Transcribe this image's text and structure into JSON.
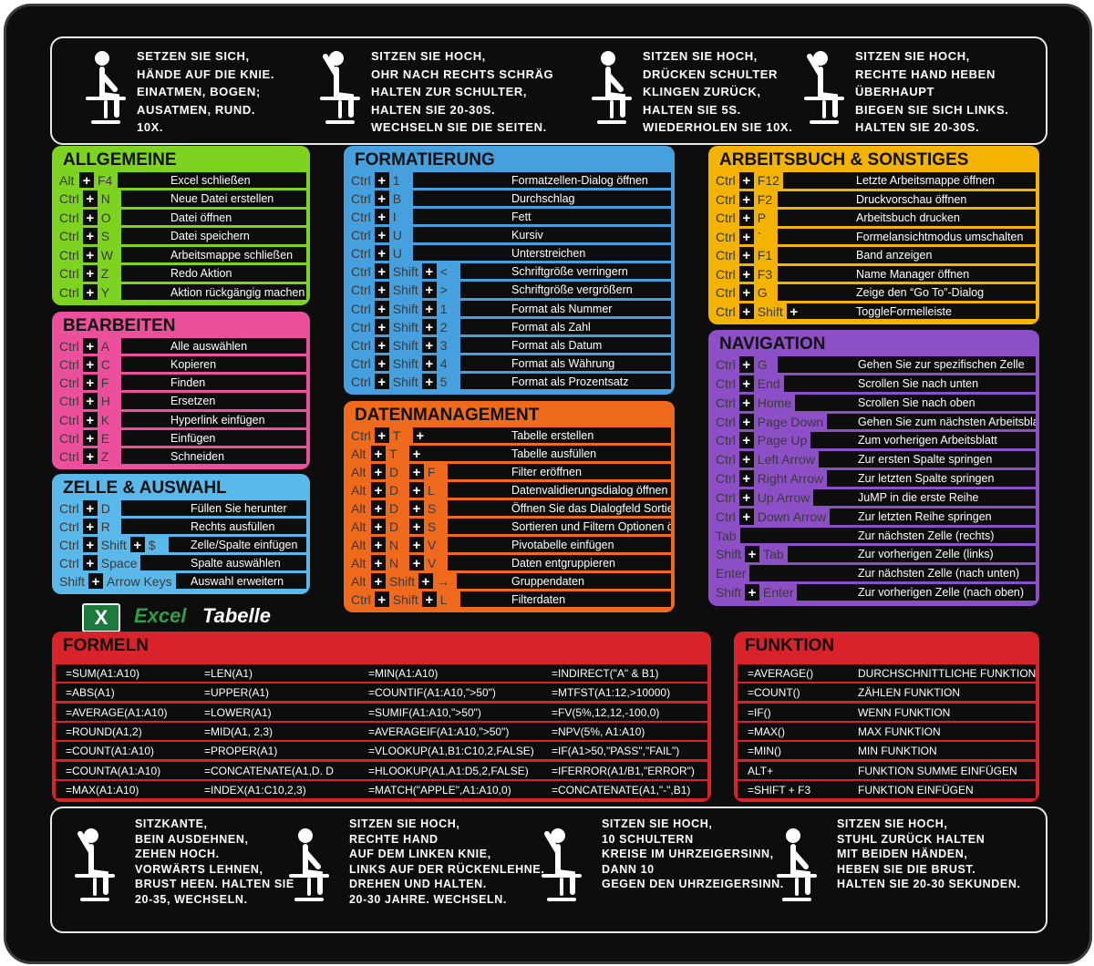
{
  "exercises_top": [
    [
      "SETZEN SIE SICH,",
      "HÄNDE AUF DIE KNIE.",
      "EINATMEN, BOGEN;",
      "AUSATMEN, RUND.",
      "10X."
    ],
    [
      "SITZEN SIE HOCH,",
      "OHR NACH RECHTS SCHRÄG",
      "HALTEN ZUR SCHULTER,",
      "HALTEN SIE 20-30S.",
      "WECHSELN SIE DIE SEITEN."
    ],
    [
      "SITZEN SIE HOCH,",
      "DRÜCKEN SCHULTER",
      "KLINGEN ZURÜCK,",
      "HALTEN SIE 5S.",
      "WIEDERHOLEN SIE 10X."
    ],
    [
      "SITZEN SIE HOCH,",
      "RECHTE HAND HEBEN",
      "ÜBERHAUPT",
      "BIEGEN SIE SICH LINKS.",
      "HALTEN SIE 20-30S."
    ]
  ],
  "sections": [
    {
      "title": "ALLGEMEINE",
      "rows": [
        {
          "keys": [
            "Alt",
            "+",
            "F4"
          ],
          "description": "Excel schließen"
        },
        {
          "keys": [
            "Ctrl",
            "+",
            "N"
          ],
          "description": "Neue Datei erstellen"
        },
        {
          "keys": [
            "Ctrl",
            "+",
            "O"
          ],
          "description": "Datei öffnen"
        },
        {
          "keys": [
            "Ctrl",
            "+",
            "S"
          ],
          "description": "Datei speichern"
        },
        {
          "keys": [
            "Ctrl",
            "+",
            "W"
          ],
          "description": "Arbeitsmappe schließen"
        },
        {
          "keys": [
            "Ctrl",
            "+",
            "Z"
          ],
          "description": "Redo Aktion"
        },
        {
          "keys": [
            "Ctrl",
            "+",
            "Y"
          ],
          "description": "Aktion rückgängig machen"
        }
      ]
    },
    {
      "title": "BEARBEITEN",
      "rows": [
        {
          "keys": [
            "Ctrl",
            "+",
            "A"
          ],
          "description": "Alle auswählen"
        },
        {
          "keys": [
            "Ctrl",
            "+",
            "C"
          ],
          "description": "Kopieren"
        },
        {
          "keys": [
            "Ctrl",
            "+",
            "F"
          ],
          "description": "Finden"
        },
        {
          "keys": [
            "Ctrl",
            "+",
            "H"
          ],
          "description": "Ersetzen"
        },
        {
          "keys": [
            "Ctrl",
            "+",
            "K"
          ],
          "description": "Hyperlink einfügen"
        },
        {
          "keys": [
            "Ctrl",
            "+",
            "E"
          ],
          "description": "Einfügen"
        },
        {
          "keys": [
            "Ctrl",
            "+",
            "Z"
          ],
          "description": "Schneiden"
        }
      ]
    },
    {
      "title": "ZELLE & AUSWAHL",
      "rows": [
        {
          "keys": [
            "Ctrl",
            "+",
            "D"
          ],
          "description": "Füllen Sie herunter"
        },
        {
          "keys": [
            "Ctrl",
            "+",
            "R"
          ],
          "description": "Rechts ausfüllen"
        },
        {
          "keys": [
            "Ctrl",
            "+",
            "Shift",
            "+",
            "$"
          ],
          "description": "Zelle/Spalte einfügen"
        },
        {
          "keys": [
            "Ctrl",
            "+",
            "Space"
          ],
          "description": "Spalte auswählen"
        },
        {
          "keys": [
            "Shift",
            "+",
            "Arrow Keys"
          ],
          "description": "Auswahl erweitern"
        }
      ]
    },
    {
      "title": "FORMATIERUNG",
      "rows": [
        {
          "keys": [
            "Ctrl",
            "+",
            "1"
          ],
          "description": "Formatzellen-Dialog öffnen"
        },
        {
          "keys": [
            "Ctrl",
            "+",
            "B"
          ],
          "description": "Durchschlag"
        },
        {
          "keys": [
            "Ctrl",
            "+",
            "I"
          ],
          "description": "Fett"
        },
        {
          "keys": [
            "Ctrl",
            "+",
            "U"
          ],
          "description": "Kursiv"
        },
        {
          "keys": [
            "Ctrl",
            "+",
            "U"
          ],
          "description": "Unterstreichen"
        },
        {
          "keys": [
            "Ctrl",
            "+",
            "Shift",
            "+",
            "<"
          ],
          "description": "Schriftgröße verringern"
        },
        {
          "keys": [
            "Ctrl",
            "+",
            "Shift",
            "+",
            ">"
          ],
          "description": "Schriftgröße vergrößern"
        },
        {
          "keys": [
            "Ctrl",
            "+",
            "Shift",
            "+",
            "1"
          ],
          "description": "Format als Nummer"
        },
        {
          "keys": [
            "Ctrl",
            "+",
            "Shift",
            "+",
            "2"
          ],
          "description": "Format als Zahl"
        },
        {
          "keys": [
            "Ctrl",
            "+",
            "Shift",
            "+",
            "3"
          ],
          "description": "Format als Datum"
        },
        {
          "keys": [
            "Ctrl",
            "+",
            "Shift",
            "+",
            "4"
          ],
          "description": "Format als Währung"
        },
        {
          "keys": [
            "Ctrl",
            "+",
            "Shift",
            "+",
            "5"
          ],
          "description": "Format als Prozentsatz"
        }
      ]
    },
    {
      "title": "DATENMANAGEMENT",
      "rows": [
        {
          "keys": [
            "Ctrl",
            "+",
            "T",
            "+"
          ],
          "description": "Tabelle erstellen"
        },
        {
          "keys": [
            "Alt",
            "+",
            "T",
            "+"
          ],
          "description": "Tabelle ausfüllen"
        },
        {
          "keys": [
            "Alt",
            "+",
            "D",
            "+",
            "F"
          ],
          "description": "Filter eröffnen"
        },
        {
          "keys": [
            "Alt",
            "+",
            "D",
            "+",
            "L"
          ],
          "description": "Datenvalidierungsdialog öffnen"
        },
        {
          "keys": [
            "Alt",
            "+",
            "D",
            "+",
            "S"
          ],
          "description": "Öffnen Sie das Dialogfeld Sortieren"
        },
        {
          "keys": [
            "Alt",
            "+",
            "D",
            "+",
            "S"
          ],
          "description": "Sortieren und Filtern Optionen öffnen"
        },
        {
          "keys": [
            "Alt",
            "+",
            "N",
            "+",
            "V"
          ],
          "description": "Pivotabelle einfügen"
        },
        {
          "keys": [
            "Alt",
            "+",
            "N",
            "+",
            "V"
          ],
          "description": "Daten entgruppieren"
        },
        {
          "keys": [
            "Alt",
            "+",
            "Shift",
            "+",
            "→"
          ],
          "description": "Gruppendaten"
        },
        {
          "keys": [
            "Ctrl",
            "+",
            "Shift",
            "+",
            "L"
          ],
          "description": "Filterdaten"
        }
      ]
    },
    {
      "title": "ARBEITSBUCH & SONSTIGES",
      "rows": [
        {
          "keys": [
            "Ctrl",
            "+",
            "F12"
          ],
          "description": "Letzte Arbeitsmappe öffnen"
        },
        {
          "keys": [
            "Ctrl",
            "+",
            "F2"
          ],
          "description": "Druckvorschau öffnen"
        },
        {
          "keys": [
            "Ctrl",
            "+",
            "P"
          ],
          "description": "Arbeitsbuch drucken"
        },
        {
          "keys": [
            "Ctrl",
            "+",
            "`"
          ],
          "description": "Formelansichtmodus umschalten"
        },
        {
          "keys": [
            "Ctrl",
            "+",
            "F1"
          ],
          "description": "Band anzeigen"
        },
        {
          "keys": [
            "Ctrl",
            "+",
            "F3"
          ],
          "description": "Name Manager öffnen"
        },
        {
          "keys": [
            "Ctrl",
            "+",
            "G"
          ],
          "description": "Zeige den “Go To”-Dialog"
        },
        {
          "keys": [
            "Ctrl",
            "+",
            "Shift",
            "+"
          ],
          "description": "ToggleFormelleiste"
        }
      ]
    },
    {
      "title": "NAVIGATION",
      "rows": [
        {
          "keys": [
            "Ctrl",
            "+",
            "G"
          ],
          "description": "Gehen Sie zur spezifischen Zelle"
        },
        {
          "keys": [
            "Ctrl",
            "+",
            "End"
          ],
          "description": "Scrollen Sie nach unten"
        },
        {
          "keys": [
            "Ctrl",
            "+",
            "Home"
          ],
          "description": "Scrollen Sie nach oben"
        },
        {
          "keys": [
            "Ctrl",
            "+",
            "Page Down"
          ],
          "description": "Gehen Sie zum nächsten Arbeitsblatt"
        },
        {
          "keys": [
            "Ctrl",
            "+",
            "Page Up"
          ],
          "description": "Zum vorherigen Arbeitsblatt"
        },
        {
          "keys": [
            "Ctrl",
            "+",
            "Left Arrow"
          ],
          "description": "Zur ersten Spalte springen"
        },
        {
          "keys": [
            "Ctrl",
            "+",
            "Right Arrow"
          ],
          "description": "Zur letzten Spalte springen"
        },
        {
          "keys": [
            "Ctrl",
            "+",
            "Up Arrow"
          ],
          "description": "JuMP in die erste Reihe"
        },
        {
          "keys": [
            "Ctrl",
            "+",
            "Down Arrow"
          ],
          "description": "Zur letzten Reihe springen"
        },
        {
          "keys": [
            "Tab"
          ],
          "description": "Zur nächsten Zelle (rechts)"
        },
        {
          "keys": [
            "Shift",
            "+",
            "Tab"
          ],
          "description": "Zur vorherigen Zelle (links)"
        },
        {
          "keys": [
            "Enter"
          ],
          "description": "Zur nächsten Zelle (nach unten)"
        },
        {
          "keys": [
            "Shift",
            "+",
            "Enter"
          ],
          "description": "Zur vorherigen Zelle (nach oben)"
        }
      ]
    }
  ],
  "logo": {
    "icon": "X",
    "brand": "Excel",
    "product": "Tabelle"
  },
  "formeln": {
    "title": "FORMELN",
    "rows": [
      [
        "=SUM(A1:A10)",
        "=LEN(A1)",
        "=MIN(A1:A10)",
        "=INDIRECT(\"A\" & B1)"
      ],
      [
        "=ABS(A1)",
        "=UPPER(A1)",
        "=COUNTIF(A1:A10,\">50\")",
        "=MTFST(A1:12,>10000)"
      ],
      [
        "=AVERAGE(A1:A10)",
        "=LOWER(A1)",
        "=SUMIF(A1:A10,\">50\")",
        "=FV(5%,12,12,-100,0)"
      ],
      [
        "=ROUND(A1,2)",
        "=MID(A1, 2,3)",
        "=AVERAGEIF(A1:A10,\">50\")",
        "=NPV(5%, A1:A10)"
      ],
      [
        "=COUNT(A1:A10)",
        "=PROPER(A1)",
        "=VLOOKUP(A1,B1:C10,2,FALSE)",
        "=IF(A1>50,\"PASS\",\"FAIL\")"
      ],
      [
        "=COUNTA(A1:A10)",
        "=CONCATENATE(A1,D. D",
        "=HLOOKUP(A1,A1:D5,2,FALSE)",
        "=IFERROR(A1/B1,\"ERROR\")"
      ],
      [
        "=MAX(A1:A10)",
        "=INDEX(A1:C10,2,3)",
        "=MATCH(\"APPLE\",A1:A10,0)",
        "=CONCATENATE(A1,\"-\",B1)"
      ]
    ]
  },
  "funktion": {
    "title": "FUNKTION",
    "rows": [
      [
        "=AVERAGE()",
        "DURCHSCHNITTLICHE FUNKTION"
      ],
      [
        "=COUNT()",
        "ZÄHLEN FUNKTION"
      ],
      [
        "=IF()",
        "WENN FUNKTION"
      ],
      [
        "=MAX()",
        "MAX FUNKTION"
      ],
      [
        "=MIN()",
        "MIN FUNKTION"
      ],
      [
        "ALT+",
        "FUNKTION SUMME EINFÜGEN"
      ],
      [
        "=SHIFT + F3",
        "FUNKTION EINFÜGEN"
      ]
    ]
  },
  "exercises_bottom": [
    [
      "SITZKANTE,",
      "BEIN AUSDEHNEN,",
      "ZEHEN HOCH.",
      "VORWÄRTS LEHNEN,",
      "BRUST HEEN. HALTEN SIE",
      "20-35, WECHSELN."
    ],
    [
      "SITZEN SIE HOCH,",
      "RECHTE HAND",
      "AUF DEM LINKEN KNIE,",
      "LINKS AUF DER RÜCKENLEHNE.",
      "DREHEN UND HALTEN.",
      "20-30 JAHRE. WECHSELN."
    ],
    [
      "SITZEN SIE HOCH,",
      "10 SCHULTERN",
      "KREISE IM UHRZEIGERSINN,",
      "DANN 10",
      "GEGEN DEN UHRZEIGERSINN."
    ],
    [
      "SITZEN SIE HOCH,",
      "STUHL ZURÜCK HALTEN",
      "MIT BEIDEN HÄNDEN,",
      "HEBEN SIE DIE BRUST.",
      "HALTEN SIE 20-30 SEKUNDEN."
    ]
  ]
}
